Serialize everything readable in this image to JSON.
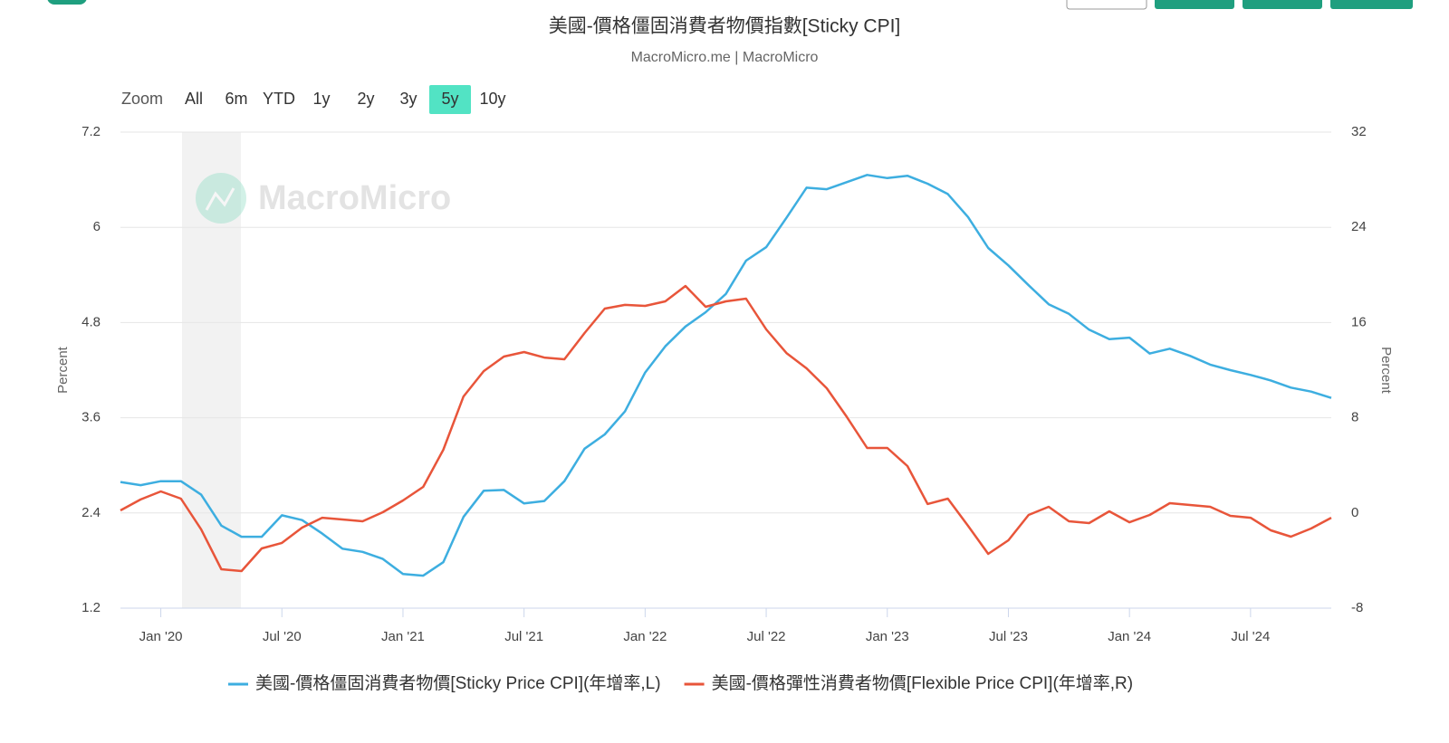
{
  "chart_data": {
    "type": "line",
    "title": "美國-價格僵固消費者物價指數[Sticky CPI]",
    "subtitle": "MacroMicro.me | MacroMicro",
    "watermark": "MacroMicro",
    "range_selector": {
      "label": "Zoom",
      "buttons": [
        "All",
        "6m",
        "YTD",
        "1y",
        "2y",
        "3y",
        "5y",
        "10y"
      ],
      "selected": 6
    },
    "ylabel": "Percent",
    "y2label": "Percent",
    "categories": [
      null,
      null,
      "Jan '20",
      null,
      null,
      null,
      null,
      null,
      "Jul '20",
      null,
      null,
      null,
      null,
      null,
      "Jan '21",
      null,
      null,
      null,
      null,
      null,
      "Jul '21",
      null,
      null,
      null,
      null,
      null,
      "Jan '22",
      null,
      null,
      null,
      null,
      null,
      "Jul '22",
      null,
      null,
      null,
      null,
      null,
      "Jan '23",
      null,
      null,
      null,
      null,
      null,
      "Jul '23",
      null,
      null,
      null,
      null,
      null,
      "Jan '24",
      null,
      null,
      null,
      null,
      null,
      "Jul '24",
      null,
      null,
      null,
      null
    ],
    "series": [
      {
        "name": "美國-價格僵固消費者物價[Sticky Price CPI](年增率,L)",
        "color": "#3daee0",
        "values": [
          2.79,
          2.75,
          2.8,
          2.8,
          2.63,
          2.24,
          2.1,
          2.1,
          2.37,
          2.31,
          2.14,
          1.95,
          1.91,
          1.82,
          1.63,
          1.61,
          1.78,
          2.35,
          2.68,
          2.69,
          2.52,
          2.55,
          2.8,
          3.21,
          3.39,
          3.68,
          4.17,
          4.5,
          4.75,
          4.93,
          5.16,
          5.58,
          5.75,
          6.12,
          6.5,
          6.48,
          6.57,
          6.66,
          6.62,
          6.65,
          6.55,
          6.42,
          6.13,
          5.74,
          5.52,
          5.27,
          5.03,
          4.91,
          4.71,
          4.59,
          4.61,
          4.41,
          4.47,
          4.38,
          4.27,
          4.2,
          4.14,
          4.07,
          3.98,
          3.93,
          3.85
        ]
      },
      {
        "name": "美國-價格彈性消費者物價[Flexible Price CPI](年增率,R)",
        "color": "#e8553a",
        "axis": "y2",
        "values": [
          0.21,
          1.13,
          1.81,
          1.2,
          -1.38,
          -4.73,
          -4.88,
          -2.98,
          -2.52,
          -1.23,
          -0.4,
          -0.55,
          -0.7,
          0.06,
          1.05,
          2.19,
          5.31,
          9.79,
          11.92,
          13.14,
          13.52,
          13.06,
          12.91,
          15.12,
          17.17,
          17.48,
          17.4,
          17.78,
          19.07,
          17.32,
          17.78,
          18.01,
          15.42,
          13.44,
          12.15,
          10.48,
          8.05,
          5.46,
          5.46,
          3.94,
          0.75,
          1.2,
          -1.08,
          -3.44,
          -2.3,
          -0.17,
          0.52,
          -0.7,
          -0.85,
          0.14,
          -0.78,
          -0.17,
          0.82,
          0.67,
          0.52,
          -0.24,
          -0.4,
          -1.46,
          -1.99,
          -1.31,
          -0.4
        ]
      }
    ],
    "ylim": [
      1.2,
      7.2
    ],
    "yticks": [
      1.2,
      2.4,
      3.6,
      4.8,
      6,
      7.2
    ],
    "y2lim": [
      -8,
      32
    ],
    "y2ticks": [
      -8,
      0,
      8,
      16,
      24,
      32
    ],
    "grid": true,
    "legend": "bottom"
  }
}
